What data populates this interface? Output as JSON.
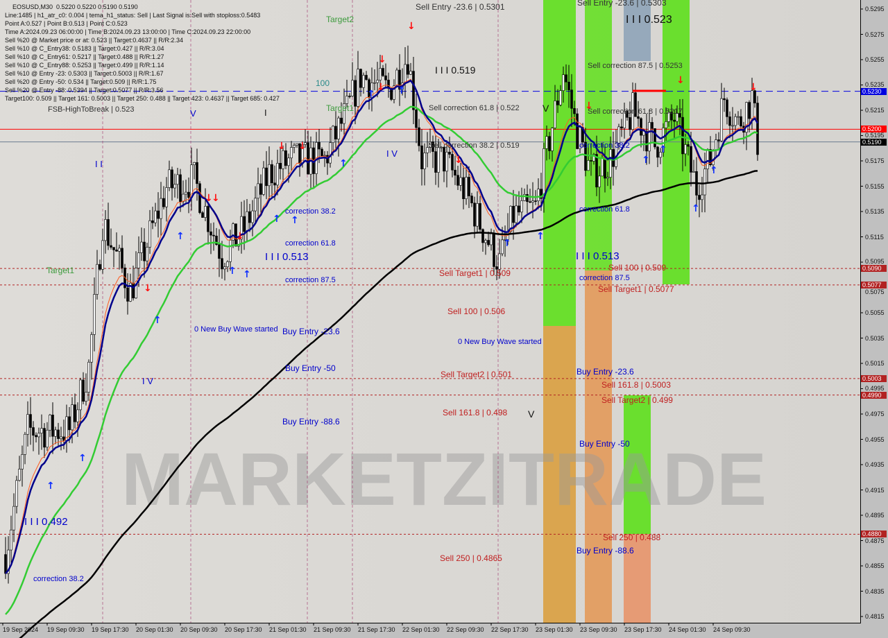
{
  "chart_data": {
    "type": "candlestick",
    "symbol": "EOSUSD,M30",
    "ohlc_header": "0.5220 0.5220 0.5190 0.5190",
    "ylim": [
      0.4805,
      0.5305
    ],
    "y_ticks": [
      "0.5295",
      "0.5275",
      "0.5255",
      "0.5235",
      "0.5215",
      "0.5195",
      "0.5175",
      "0.5155",
      "0.5135",
      "0.5115",
      "0.5095",
      "0.5075",
      "0.5055",
      "0.5035",
      "0.5015",
      "0.4995",
      "0.4975",
      "0.4955",
      "0.4935",
      "0.4915",
      "0.4895",
      "0.4875",
      "0.4855",
      "0.4835",
      "0.4815"
    ],
    "x_ticks": [
      "19 Sep 2024",
      "19 Sep 09:30",
      "19 Sep 17:30",
      "20 Sep 01:30",
      "20 Sep 09:30",
      "20 Sep 17:30",
      "21 Sep 01:30",
      "21 Sep 09:30",
      "21 Sep 17:30",
      "22 Sep 01:30",
      "22 Sep 09:30",
      "22 Sep 17:30",
      "23 Sep 01:30",
      "23 Sep 09:30",
      "23 Sep 17:30",
      "24 Sep 01:30",
      "24 Sep 09:30"
    ],
    "price_path": [
      [
        "19 Sep 02:00",
        0.4864
      ],
      [
        "19 Sep 06:00",
        0.4962
      ],
      [
        "19 Sep 13:30",
        0.4962
      ],
      [
        "19 Sep 17:00",
        0.5012
      ],
      [
        "19 Sep 19:30",
        0.5127
      ],
      [
        "20 Sep 00:30",
        0.5072
      ],
      [
        "20 Sep 07:00",
        0.5154
      ],
      [
        "20 Sep 12:00",
        0.516
      ],
      [
        "20 Sep 17:00",
        0.51
      ],
      [
        "20 Sep 21:00",
        0.5121
      ],
      [
        "21 Sep 01:30",
        0.5165
      ],
      [
        "21 Sep 05:30",
        0.5176
      ],
      [
        "21 Sep 11:30",
        0.5176
      ],
      [
        "21 Sep 15:30",
        0.5214
      ],
      [
        "21 Sep 18:00",
        0.5242
      ],
      [
        "21 Sep 23:00",
        0.5231
      ],
      [
        "22 Sep 02:30",
        0.5258
      ],
      [
        "22 Sep 05:00",
        0.5176
      ],
      [
        "22 Sep 09:00",
        0.5176
      ],
      [
        "22 Sep 13:00",
        0.5149
      ],
      [
        "22 Sep 16:30",
        0.5116
      ],
      [
        "22 Sep 19:00",
        0.5094
      ],
      [
        "22 Sep 21:30",
        0.5132
      ],
      [
        "23 Sep 01:30",
        0.5138
      ],
      [
        "23 Sep 04:00",
        0.5192
      ],
      [
        "23 Sep 06:30",
        0.5247
      ],
      [
        "23 Sep 09:00",
        0.5198
      ],
      [
        "23 Sep 11:30",
        0.5165
      ],
      [
        "23 Sep 15:00",
        0.5176
      ],
      [
        "23 Sep 19:00",
        0.5214
      ],
      [
        "23 Sep 23:00",
        0.5187
      ],
      [
        "24 Sep 02:30",
        0.5209
      ],
      [
        "24 Sep 06:30",
        0.5154
      ],
      [
        "24 Sep 09:00",
        0.5176
      ],
      [
        "24 Sep 11:30",
        0.5225
      ],
      [
        "24 Sep 14:00",
        0.5204
      ],
      [
        "24 Sep 16:30",
        0.5225
      ],
      [
        "24 Sep 17:30",
        0.519
      ]
    ],
    "levels": [
      {
        "price": 0.523,
        "label": "0.5230",
        "color": "#0000e0",
        "style": "dash"
      },
      {
        "price": 0.52,
        "label": "0.5200",
        "color": "#ff0000",
        "style": "solid"
      },
      {
        "price": 0.519,
        "label": "0.5190",
        "color": "#000000",
        "style": "solid-gray"
      },
      {
        "price": 0.509,
        "label": "0.5090",
        "color": "#b22222",
        "style": "dot"
      },
      {
        "price": 0.5077,
        "label": "0.5077",
        "color": "#b22222",
        "style": "dot"
      },
      {
        "price": 0.5003,
        "label": "0.5003",
        "color": "#b22222",
        "style": "dot"
      },
      {
        "price": 0.499,
        "label": "0.4990",
        "color": "#b22222",
        "style": "dot"
      },
      {
        "price": 0.488,
        "label": "0.4880",
        "color": "#b22222",
        "style": "dot"
      }
    ],
    "ma_colors": {
      "fast": "#00008b",
      "mid": "#33cc33",
      "slow": "#000000"
    }
  },
  "info_lines": [
    "EOSUSD,M30  0.5220 0.5220 0.5190 0.5190",
    "Line:1485 | h1_atr_c0: 0.004 | tema_h1_status: Sell | Last Signal is:Sell with stoploss:0.5483",
    "Point A:0.527 | Point B:0.513 | Point C:0.523",
    "Time A:2024.09.23 06:00:00 | Time B:2024.09.23 13:00:00 | Time C:2024.09.23 22:00:00",
    "Sell %20 @ Market price or at: 0.523 || Target:0.4637 || R/R:2.34",
    "Sell %10 @ C_Entry38: 0.5183 || Target:0.427 || R/R:3.04",
    "Sell %10 @ C_Entry61: 0.5217 || Target:0.488 || R/R:1.27",
    "Sell %10 @ C_Entry88: 0.5253 || Target:0.499 || R/R:1.14",
    "Sell %10 @ Entry -23: 0.5303 || Target:0.5003 || R/R:1.67",
    "Sell %20 @ Entry -50: 0.534 || Target:0.509 || R/R:1.75",
    "Sell %20 @ Entry -88: 0.5394 || Target:0.5077 || R/R:3.56",
    "Target100: 0.509 || Target 161: 0.5003 || Target 250: 0.488 || Target 423: 0.4637 || Target 685: 0.427"
  ],
  "annotations": [
    {
      "text": "Sell Entry -23.6 | 0.5301",
      "color": "#333333"
    },
    {
      "text": "Sell Entry -23.6 | 0.5303",
      "color": "#333333"
    },
    {
      "text": "I I I 0.523",
      "color": "#111111"
    },
    {
      "text": "I I I 0.519",
      "color": "#111111"
    },
    {
      "text": "Sell correction 87.5 | 0.5253",
      "color": "#333333"
    },
    {
      "text": "Sell correction 61.8 | 0.522",
      "color": "#333333"
    },
    {
      "text": "V",
      "color": "#111111"
    },
    {
      "text": "Sell correction 61.8 | 0.5217",
      "color": "#333333"
    },
    {
      "text": "Sell correction 38.2 | 0.519",
      "color": "#333333"
    },
    {
      "text": "correction 38.2",
      "color": "#0000cc"
    },
    {
      "text": "I V",
      "color": "#0000cc"
    },
    {
      "text": "correction 61.8",
      "color": "#0000cc"
    },
    {
      "text": "I I I 0.513",
      "color": "#0000cc"
    },
    {
      "text": "Sell 100 | 0.509",
      "color": "#c02020"
    },
    {
      "text": "correction 87.5",
      "color": "#0000cc"
    },
    {
      "text": "Sell Target1 | 0.5077",
      "color": "#c02020"
    },
    {
      "text": "Sell Target1 | 0.509",
      "color": "#c02020"
    },
    {
      "text": "Sell 100 | 0.506",
      "color": "#c02020"
    },
    {
      "text": "0 New Buy Wave started",
      "color": "#0000cc"
    },
    {
      "text": "Sell Target2 | 0.501",
      "color": "#c02020"
    },
    {
      "text": "Buy Entry -23.6",
      "color": "#0000cc"
    },
    {
      "text": "Sell 161.8 | 0.5003",
      "color": "#c02020"
    },
    {
      "text": "Sell Target2 | 0.499",
      "color": "#c02020"
    },
    {
      "text": "Sell 161.8 | 0.498",
      "color": "#c02020"
    },
    {
      "text": "V",
      "color": "#111111"
    },
    {
      "text": "Buy Entry -50",
      "color": "#0000cc"
    },
    {
      "text": "Sell 250 | 0.488",
      "color": "#c02020"
    },
    {
      "text": "Buy Entry -88.6",
      "color": "#0000cc"
    },
    {
      "text": "Sell 250 | 0.4865",
      "color": "#c02020"
    },
    {
      "text": "Target2",
      "color": "#3c9a3c"
    },
    {
      "text": "100",
      "color": "#2a8a8a"
    },
    {
      "text": "Target1",
      "color": "#3c9a3c"
    },
    {
      "text": "V",
      "color": "#0000cc"
    },
    {
      "text": "I",
      "color": "#111111"
    },
    {
      "text": "I I",
      "color": "#0000cc"
    },
    {
      "text": "correction 38.2",
      "color": "#0000cc"
    },
    {
      "text": "correction 61.8",
      "color": "#0000cc"
    },
    {
      "text": "I I I 0.513",
      "color": "#0000cc"
    },
    {
      "text": "correction 87.5",
      "color": "#0000cc"
    },
    {
      "text": "Target1",
      "color": "#3c9a3c"
    },
    {
      "text": "0 New Buy Wave started",
      "color": "#0000cc"
    },
    {
      "text": "Buy Entry -23.6",
      "color": "#0000cc"
    },
    {
      "text": "Buy Entry -50",
      "color": "#0000cc"
    },
    {
      "text": "I V",
      "color": "#0000cc"
    },
    {
      "text": "Buy Entry -88.6",
      "color": "#0000cc"
    },
    {
      "text": "I I I 0.492",
      "color": "#0000cc"
    },
    {
      "text": "correction 38.2",
      "color": "#0000cc"
    },
    {
      "text": "FSB-HighToBreak | 0.523",
      "color": "#333333"
    }
  ],
  "watermark": "MARKETZITRADE"
}
